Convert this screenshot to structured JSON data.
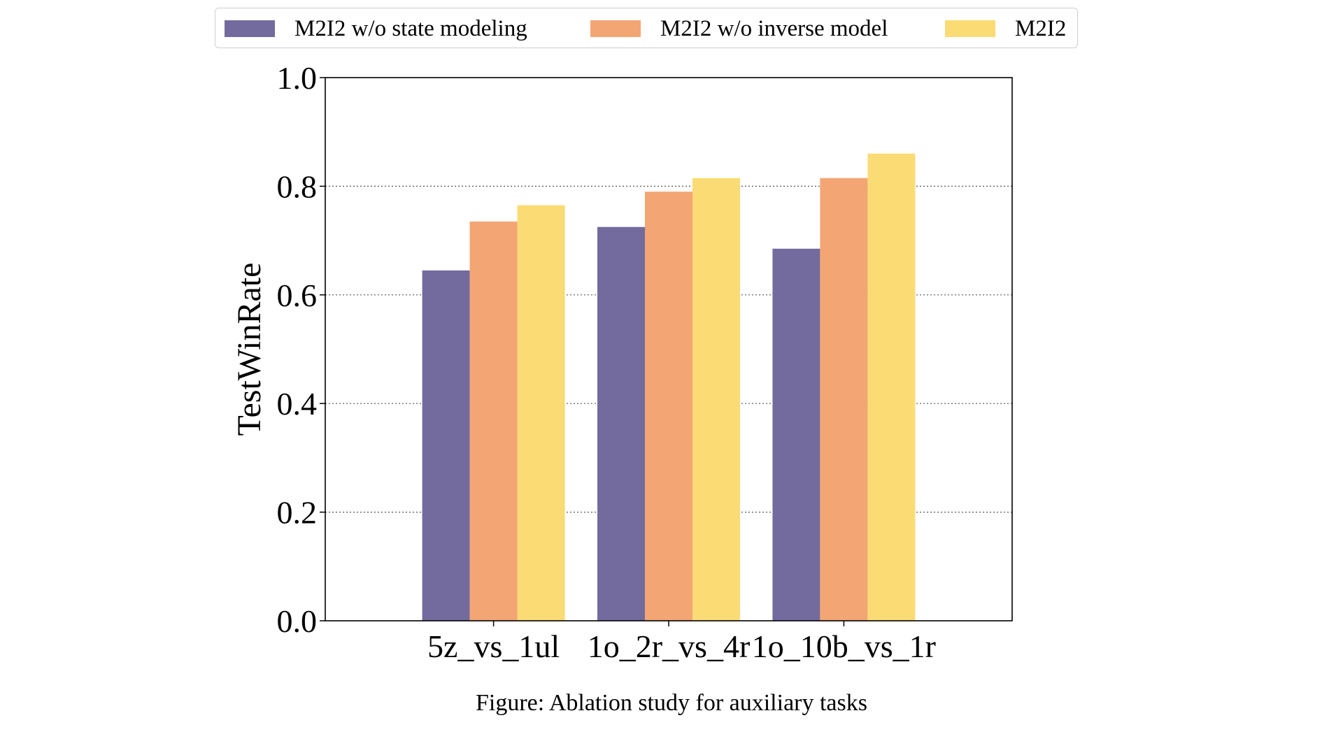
{
  "caption": "Figure: Ablation study for auxiliary tasks",
  "chart_data": {
    "type": "bar",
    "title": "",
    "xlabel": "",
    "ylabel": "TestWinRate",
    "ylim": [
      0,
      1.0
    ],
    "yticks": [
      "0.0",
      "0.2",
      "0.4",
      "0.6",
      "0.8",
      "1.0"
    ],
    "grid": "horizontal dotted",
    "legend_position": "top, outside plot",
    "categories": [
      "5z_vs_1ul",
      "1o_2r_vs_4r",
      "1o_10b_vs_1r"
    ],
    "series": [
      {
        "name": "M2I2 w/o state modeling",
        "color": "#736b9e",
        "values": [
          0.645,
          0.725,
          0.685
        ]
      },
      {
        "name": "M2I2 w/o inverse model",
        "color": "#f4a574",
        "values": [
          0.735,
          0.79,
          0.815
        ]
      },
      {
        "name": "M2I2",
        "color": "#fbdb74",
        "values": [
          0.765,
          0.815,
          0.86
        ]
      }
    ]
  }
}
